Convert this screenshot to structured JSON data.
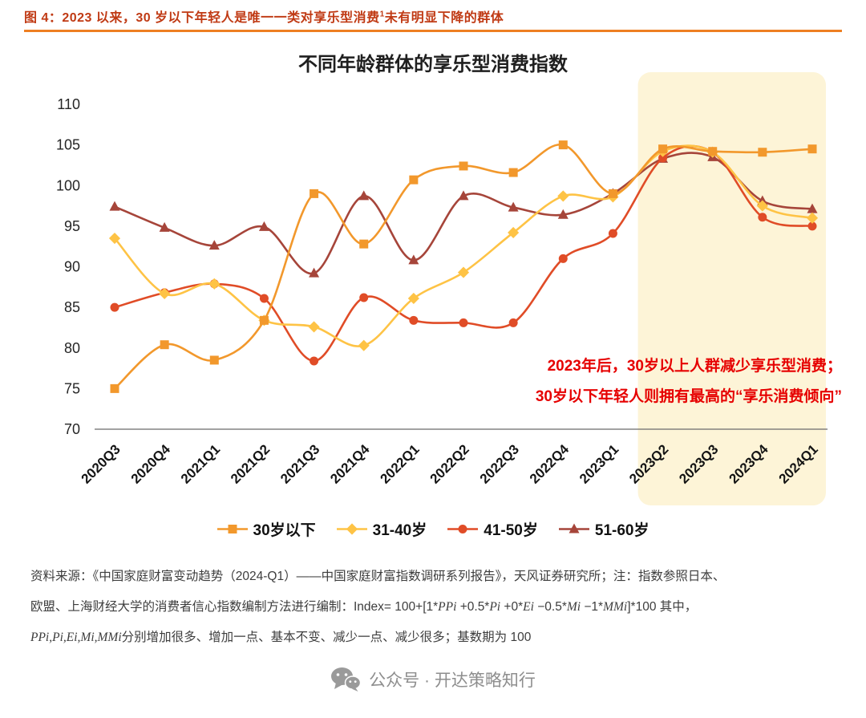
{
  "header": {
    "caption_main": "图 4：2023 以来，30 岁以下年轻人是唯一一类对享乐型消费",
    "caption_sup": "1",
    "caption_rest": "未有明显下降的群体",
    "caption_color": "#C03A14",
    "rule_color": "#EE7F22"
  },
  "chart_data": {
    "type": "line",
    "title": "不同年龄群体的享乐型消费指数",
    "categories": [
      "2020Q3",
      "2020Q4",
      "2021Q1",
      "2021Q2",
      "2021Q3",
      "2021Q4",
      "2022Q1",
      "2022Q2",
      "2022Q3",
      "2022Q4",
      "2023Q1",
      "2023Q2",
      "2023Q3",
      "2023Q4",
      "2024Q1"
    ],
    "series": [
      {
        "name": "30岁以下",
        "marker": "square",
        "color": "#F2982C",
        "values": [
          75.0,
          80.4,
          78.5,
          83.4,
          99.0,
          92.8,
          100.7,
          102.4,
          101.6,
          105.0,
          99.0,
          104.5,
          104.2,
          104.1,
          104.5
        ]
      },
      {
        "name": "31-40岁",
        "marker": "diamond",
        "color": "#FEC345",
        "values": [
          93.5,
          86.7,
          87.9,
          83.4,
          82.6,
          80.3,
          86.1,
          89.3,
          94.2,
          98.7,
          98.6,
          104.2,
          104.1,
          97.5,
          96.0
        ]
      },
      {
        "name": "41-50岁",
        "marker": "circle",
        "color": "#E04C27",
        "values": [
          85.0,
          86.8,
          87.9,
          86.1,
          78.4,
          86.2,
          83.4,
          83.1,
          83.1,
          91.0,
          94.1,
          103.4,
          104.1,
          96.1,
          95.0
        ]
      },
      {
        "name": "51-60岁",
        "marker": "triangle",
        "color": "#A6453A",
        "values": [
          97.4,
          94.8,
          92.6,
          94.9,
          89.2,
          98.7,
          90.8,
          98.7,
          97.3,
          96.4,
          99.0,
          103.3,
          103.5,
          98.1,
          97.1
        ]
      }
    ],
    "ylim": [
      70,
      110
    ],
    "ytick_step": 5,
    "grid": false,
    "legend_position": "bottom",
    "highlight": {
      "from": "2023Q2",
      "to": "2024Q1",
      "color": "#FDF4D7"
    },
    "annotation": {
      "line1": "2023年后，30岁以上人群减少享乐型消费；",
      "line2": "30岁以下年轻人则拥有最高的“享乐消费倾向”",
      "color": "#E60000"
    }
  },
  "source": {
    "line1": "资料来源：《中国家庭财富变动趋势（2024-Q1）——中国家庭财富指数调研系列报告》，天风证券研究所；注：指数参照日本、",
    "line2": {
      "s1": "欧盟、上海财经大学的消费者信心指数编制方法进行编制：Index= 100+[1*",
      "s2": "PPi",
      "s3": " +0.5*",
      "s4": "Pi",
      "s5": " +0*",
      "s6": "Ei",
      "s7": " −0.5*",
      "s8": "Mi",
      "s9": " −1*",
      "s10": "MMi",
      "s11": "]*100 其中，"
    },
    "line3": {
      "s1": "PPi,Pi,Ei,Mi,MMi",
      "s2": "分别增加很多、增加一点、基本不变、减少一点、减少很多；基数期为 100"
    }
  },
  "footer": {
    "watermark": "公众号 · 开达策略知行"
  }
}
